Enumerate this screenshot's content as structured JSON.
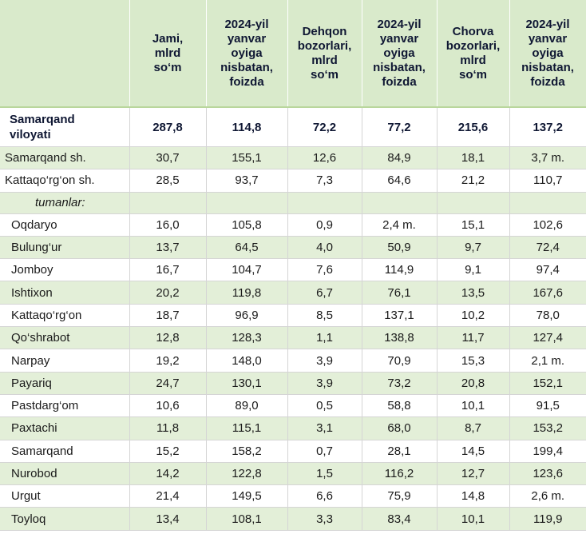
{
  "header": {
    "col1": "Jami,\nmlrd\nso‘m",
    "col2": "2024-yil\nyanvar\noyiga\nnisbatan,\nfoizda",
    "col3": "Dehqon\nbozorlari,\nmlrd\nso‘m",
    "col4": "2024-yil\nyanvar\noyiga\nnisbatan,\nfoizda",
    "col5": "Chorva\nbozorlari,\nmlrd\nso‘m",
    "col6": "2024-yil\nyanvar\noyiga\nnisbatan,\nfoizda"
  },
  "total": {
    "name": "Samarqand\nviloyati",
    "v": [
      "287,8",
      "114,8",
      "72,2",
      "77,2",
      "215,6",
      "137,2"
    ]
  },
  "cities": [
    {
      "name": "Samarqand sh.",
      "v": [
        "30,7",
        "155,1",
        "12,6",
        "84,9",
        "18,1",
        "3,7 m."
      ]
    },
    {
      "name": "Kattaqo‘rg‘on sh.",
      "v": [
        "28,5",
        "93,7",
        "7,3",
        "64,6",
        "21,2",
        "110,7"
      ]
    }
  ],
  "subheading": "tumanlar:",
  "districts": [
    {
      "name": "Oqdaryo",
      "v": [
        "16,0",
        "105,8",
        "0,9",
        "2,4 m.",
        "15,1",
        "102,6"
      ]
    },
    {
      "name": "Bulung‘ur",
      "v": [
        "13,7",
        "64,5",
        "4,0",
        "50,9",
        "9,7",
        "72,4"
      ]
    },
    {
      "name": "Jomboy",
      "v": [
        "16,7",
        "104,7",
        "7,6",
        "114,9",
        "9,1",
        "97,4"
      ]
    },
    {
      "name": "Ishtixon",
      "v": [
        "20,2",
        "119,8",
        "6,7",
        "76,1",
        "13,5",
        "167,6"
      ]
    },
    {
      "name": "Kattaqo‘rg‘on",
      "v": [
        "18,7",
        "96,9",
        "8,5",
        "137,1",
        "10,2",
        "78,0"
      ]
    },
    {
      "name": "Qo‘shrabot",
      "v": [
        "12,8",
        "128,3",
        "1,1",
        "138,8",
        "11,7",
        "127,4"
      ]
    },
    {
      "name": "Narpay",
      "v": [
        "19,2",
        "148,0",
        "3,9",
        "70,9",
        "15,3",
        "2,1 m."
      ]
    },
    {
      "name": "Payariq",
      "v": [
        "24,7",
        "130,1",
        "3,9",
        "73,2",
        "20,8",
        "152,1"
      ]
    },
    {
      "name": "Pastdarg‘om",
      "v": [
        "10,6",
        "89,0",
        "0,5",
        "58,8",
        "10,1",
        "91,5"
      ]
    },
    {
      "name": "Paxtachi",
      "v": [
        "11,8",
        "115,1",
        "3,1",
        "68,0",
        "8,7",
        "153,2"
      ]
    },
    {
      "name": "Samarqand",
      "v": [
        "15,2",
        "158,2",
        "0,7",
        "28,1",
        "14,5",
        "199,4"
      ]
    },
    {
      "name": "Nurobod",
      "v": [
        "14,2",
        "122,8",
        "1,5",
        "116,2",
        "12,7",
        "123,6"
      ]
    },
    {
      "name": "Urgut",
      "v": [
        "21,4",
        "149,5",
        "6,6",
        "75,9",
        "14,8",
        "2,6 m."
      ]
    },
    {
      "name": "Toyloq",
      "v": [
        "13,4",
        "108,1",
        "3,3",
        "83,4",
        "10,1",
        "119,9"
      ]
    }
  ]
}
